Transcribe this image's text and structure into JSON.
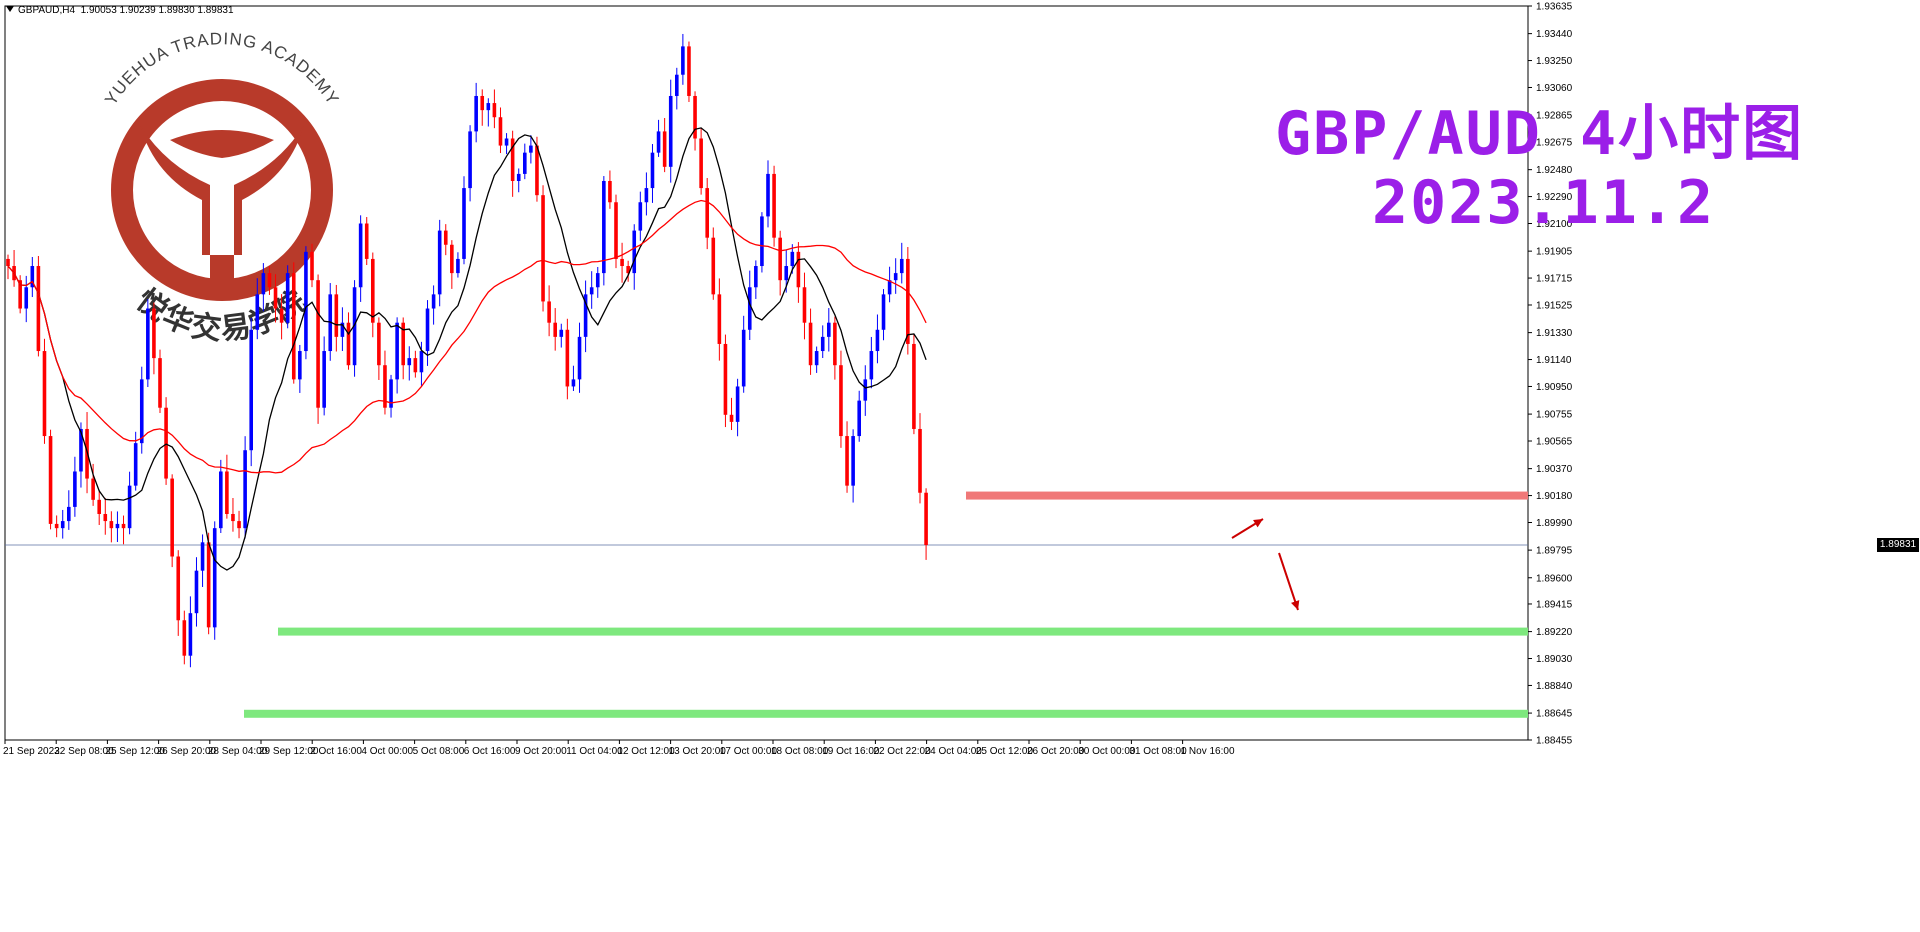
{
  "header": {
    "symbol": "GBPAUD,H4",
    "ohlc": "1.90053 1.90239 1.89830 1.89831"
  },
  "watermark": {
    "text_top": "YUEHUA TRADING ACADEMY",
    "text_bottom": "悦华交易学院",
    "color": "#b83a2a"
  },
  "annotation": {
    "title_line1": "GBP/AUD 4小时图",
    "title_line2": "2023.11.2",
    "color": "#9b1fe8"
  },
  "current_price": "1.89831",
  "colors": {
    "bull": "#0000ff",
    "bear": "#ff0000",
    "ma_fast": "#000000",
    "ma_slow": "#ff0000",
    "resistance": "#f07878",
    "support": "#7ee87e",
    "arrow": "#cc0000"
  },
  "chart_data": {
    "type": "candlestick",
    "timeframe": "H4",
    "ylim": [
      1.88455,
      1.93635
    ],
    "y_ticks": [
      "1.93635",
      "1.93440",
      "1.93250",
      "1.93060",
      "1.92865",
      "1.92675",
      "1.92480",
      "1.92290",
      "1.92100",
      "1.91905",
      "1.91715",
      "1.91525",
      "1.91330",
      "1.91140",
      "1.90950",
      "1.90755",
      "1.90565",
      "1.90370",
      "1.90180",
      "1.89990",
      "1.89795",
      "1.89600",
      "1.89415",
      "1.89220",
      "1.89030",
      "1.88840",
      "1.88645",
      "1.88455"
    ],
    "x_ticks": [
      "21 Sep 2023",
      "22 Sep 08:00",
      "25 Sep 12:00",
      "26 Sep 20:00",
      "28 Sep 04:00",
      "29 Sep 12:00",
      "2 Oct 16:00",
      "4 Oct 00:00",
      "5 Oct 08:00",
      "6 Oct 16:00",
      "9 Oct 20:00",
      "11 Oct 04:00",
      "12 Oct 12:00",
      "13 Oct 20:00",
      "17 Oct 00:00",
      "18 Oct 08:00",
      "19 Oct 16:00",
      "22 Oct 22:00",
      "24 Oct 04:00",
      "25 Oct 12:00",
      "26 Oct 20:00",
      "30 Oct 00:00",
      "31 Oct 08:00",
      "1 Nov 16:00"
    ],
    "closes": [
      1.918,
      1.917,
      1.915,
      1.9165,
      1.918,
      1.912,
      1.906,
      1.8998,
      1.8995,
      1.9,
      1.901,
      1.9035,
      1.9065,
      1.903,
      1.9015,
      1.9005,
      1.9,
      1.8995,
      1.8998,
      1.8995,
      1.9025,
      1.9055,
      1.91,
      1.915,
      1.9115,
      1.908,
      1.903,
      1.8975,
      1.893,
      1.8905,
      1.8935,
      1.8965,
      1.8985,
      1.8925,
      1.8995,
      1.9035,
      1.9005,
      1.9,
      1.8995,
      1.905,
      1.9135,
      1.916,
      1.9175,
      1.9165,
      1.915,
      1.914,
      1.9175,
      1.91,
      1.912,
      1.919,
      1.917,
      1.908,
      1.912,
      1.916,
      1.913,
      1.914,
      1.911,
      1.9165,
      1.921,
      1.9185,
      1.914,
      1.911,
      1.908,
      1.91,
      1.914,
      1.911,
      1.9115,
      1.9105,
      1.912,
      1.915,
      1.916,
      1.9205,
      1.9195,
      1.9175,
      1.9185,
      1.9235,
      1.9275,
      1.93,
      1.929,
      1.9295,
      1.9285,
      1.9265,
      1.927,
      1.924,
      1.9245,
      1.926,
      1.9265,
      1.923,
      1.9155,
      1.914,
      1.913,
      1.9135,
      1.9095,
      1.91,
      1.913,
      1.916,
      1.9165,
      1.9175,
      1.924,
      1.9225,
      1.9185,
      1.918,
      1.9175,
      1.9205,
      1.9225,
      1.9235,
      1.926,
      1.9275,
      1.925,
      1.93,
      1.9315,
      1.9335,
      1.93,
      1.927,
      1.9235,
      1.92,
      1.916,
      1.9125,
      1.9075,
      1.907,
      1.9095,
      1.9135,
      1.9165,
      1.918,
      1.9215,
      1.9245,
      1.92,
      1.917,
      1.918,
      1.919,
      1.9165,
      1.914,
      1.911,
      1.912,
      1.913,
      1.914,
      1.911,
      1.906,
      1.9025,
      1.906,
      1.9085,
      1.91,
      1.912,
      1.9135,
      1.916,
      1.917,
      1.9175,
      1.9185,
      1.9125,
      1.9065,
      1.902,
      1.89831
    ],
    "ma_fast_label": "",
    "ma_slow_label": "",
    "levels": [
      {
        "kind": "resistance",
        "price": 1.9018
      },
      {
        "kind": "support",
        "price": 1.8922
      },
      {
        "kind": "support",
        "price": 1.8864
      }
    ]
  }
}
